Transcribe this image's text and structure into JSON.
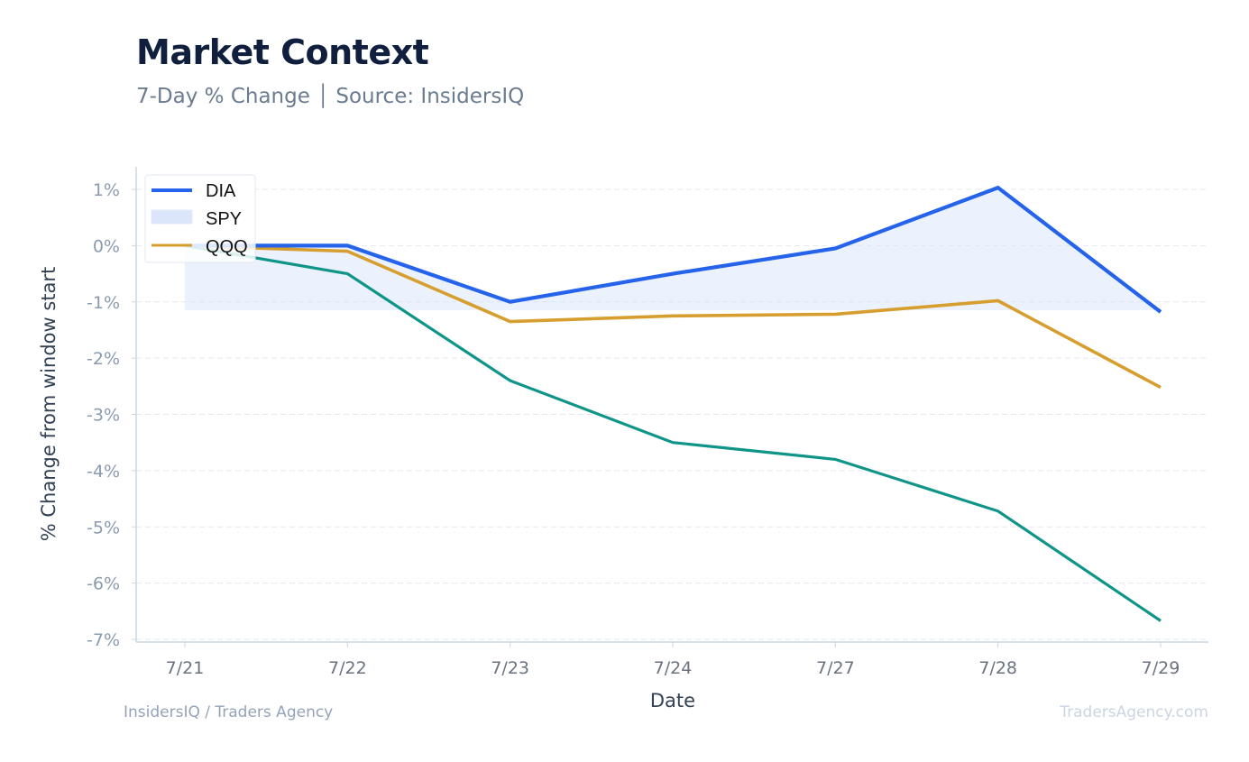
{
  "header": {
    "title": "Market Context",
    "subtitle": "7-Day % Change │ Source: InsidersIQ"
  },
  "footer": {
    "left": "InsidersIQ / Traders Agency",
    "right": "TradersAgency.com"
  },
  "colors": {
    "DIA": "#2563eb",
    "SPY": "#0f9488",
    "SPY_fill": "#dbe5fb",
    "QQQ": "#d69e2e",
    "grid": "#e5e7eb",
    "axis": "#cbd5e1"
  },
  "chart_data": {
    "type": "line",
    "title": "Market Context",
    "subtitle": "7-Day % Change │ Source: InsidersIQ",
    "xlabel": "Date",
    "ylabel": "% Change from window start",
    "categories": [
      "7/21",
      "7/22",
      "7/23",
      "7/24",
      "7/27",
      "7/28",
      "7/29"
    ],
    "ylim": [
      -7,
      1
    ],
    "yticks": [
      1,
      0,
      -1,
      -2,
      -3,
      -4,
      -5,
      -6,
      -7
    ],
    "ytick_labels": [
      "1%",
      "0%",
      "-1%",
      "-2%",
      "-3%",
      "-4%",
      "-5%",
      "-6%",
      "-7%"
    ],
    "grid": "horizontal dashed",
    "legend_position": "top-left",
    "legend": [
      "DIA",
      "SPY",
      "QQQ"
    ],
    "series": [
      {
        "name": "DIA",
        "values": [
          0.0,
          0.0,
          -1.0,
          -0.5,
          -0.05,
          1.03,
          -1.18
        ]
      },
      {
        "name": "SPY",
        "values": [
          0.0,
          -0.5,
          -2.4,
          -3.5,
          -3.8,
          -4.72,
          -6.67
        ],
        "fill_baseline": -1.15
      },
      {
        "name": "QQQ",
        "values": [
          0.0,
          -0.1,
          -1.35,
          -1.25,
          -1.22,
          -0.98,
          -2.52
        ]
      }
    ]
  }
}
